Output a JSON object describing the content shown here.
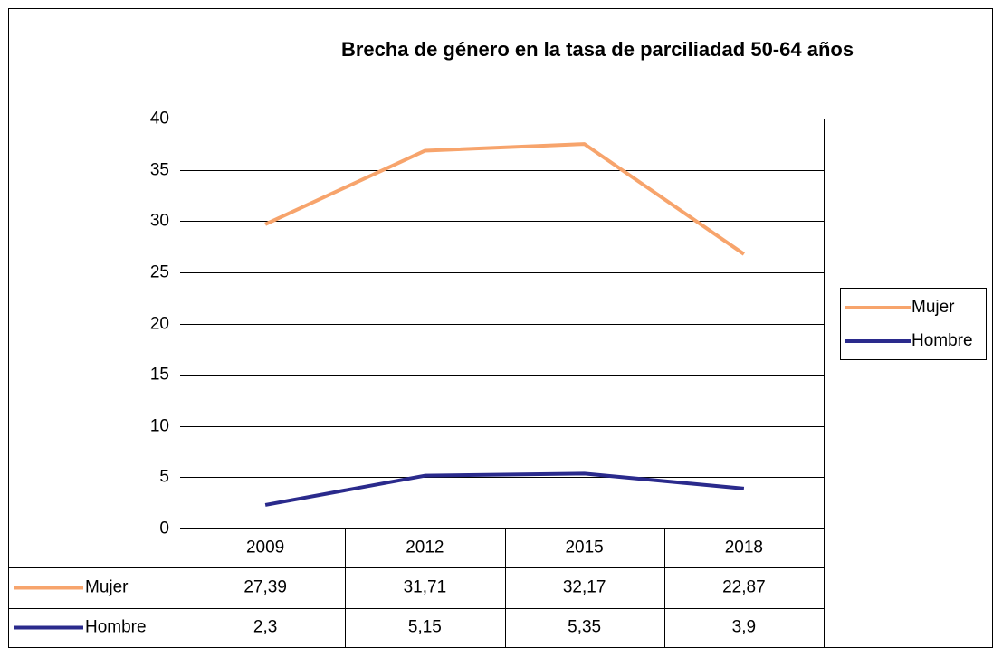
{
  "chart_data": {
    "type": "line",
    "stacked": true,
    "title": "Brecha de género en la tasa de parciliadad 50-64 años",
    "categories": [
      "2009",
      "2012",
      "2015",
      "2018"
    ],
    "series": [
      {
        "name": "Mujer",
        "color": "#f7a46c",
        "values": [
          27.39,
          31.71,
          32.17,
          22.87
        ],
        "value_labels": [
          "27,39",
          "31,71",
          "32,17",
          "22,87"
        ]
      },
      {
        "name": "Hombre",
        "color": "#2a2a8c",
        "values": [
          2.3,
          5.15,
          5.35,
          3.9
        ],
        "value_labels": [
          "2,3",
          "5,15",
          "5,35",
          "3,9"
        ]
      }
    ],
    "ylim": [
      0,
      40
    ],
    "yticks": [
      0,
      5,
      10,
      15,
      20,
      25,
      30,
      35,
      40
    ],
    "grid": true,
    "legend": "right"
  }
}
